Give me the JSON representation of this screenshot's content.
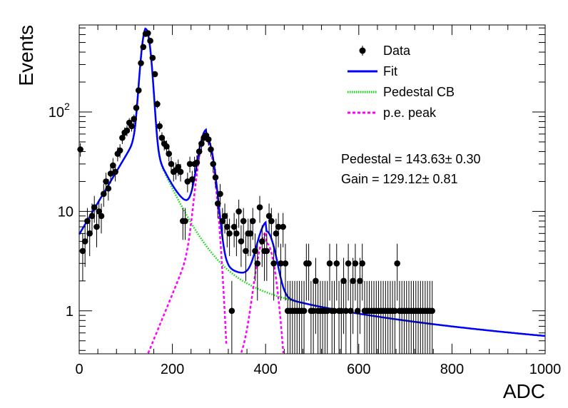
{
  "chart_data": {
    "type": "scatter",
    "xlabel": "ADC",
    "ylabel": "Events",
    "xlim": [
      0,
      1000
    ],
    "ylim": [
      0.37,
      750
    ],
    "yscale": "log",
    "grid": false,
    "legend_position": "top-right",
    "x_ticks": [
      {
        "value": 0,
        "label": "0"
      },
      {
        "value": 200,
        "label": "200"
      },
      {
        "value": 400,
        "label": "400"
      },
      {
        "value": 600,
        "label": "600"
      },
      {
        "value": 800,
        "label": "800"
      },
      {
        "value": 1000,
        "label": "1000"
      }
    ],
    "y_ticks": [
      {
        "value": 1,
        "label": "1"
      },
      {
        "value": 10,
        "label": "10"
      },
      {
        "value": 100,
        "label": "10",
        "sup": "2"
      }
    ],
    "legend": [
      {
        "label": "Data",
        "style": "marker",
        "color": "#000000"
      },
      {
        "label": "Fit",
        "style": "solid",
        "color": "#0000ff"
      },
      {
        "label": "Pedestal CB",
        "style": "dotted",
        "color": "#00dd00"
      },
      {
        "label": "p.e. peak",
        "style": "dashed",
        "color": "#ff00ff"
      }
    ],
    "annotations": [
      {
        "label": "Pedestal = 143.63",
        "pm": "±",
        "value": "0.30"
      },
      {
        "label": "Gain = 129.12",
        "pm": "±",
        "value": "0.81"
      }
    ],
    "series": [
      {
        "name": "Data",
        "style": "markers",
        "color": "#000000",
        "x": [
          2.5,
          7.5,
          12.5,
          17.5,
          22.5,
          27.5,
          32.5,
          37.5,
          42.5,
          47.5,
          52.5,
          57.5,
          62.5,
          67.5,
          72.5,
          77.5,
          82.5,
          87.5,
          92.5,
          97.5,
          102.5,
          107.5,
          112.5,
          117.5,
          122.5,
          127.5,
          132.5,
          137.5,
          142.5,
          147.5,
          152.5,
          157.5,
          162.5,
          167.5,
          172.5,
          177.5,
          182.5,
          187.5,
          192.5,
          197.5,
          202.5,
          207.5,
          212.5,
          217.5,
          222.5,
          227.5,
          232.5,
          237.5,
          242.5,
          247.5,
          252.5,
          257.5,
          262.5,
          267.5,
          272.5,
          277.5,
          282.5,
          287.5,
          292.5,
          297.5,
          302.5,
          307.5,
          312.5,
          317.5,
          322.5,
          327.5,
          332.5,
          337.5,
          342.5,
          347.5,
          352.5,
          357.5,
          362.5,
          367.5,
          372.5,
          377.5,
          382.5,
          387.5,
          392.5,
          397.5,
          402.5,
          407.5,
          412.5,
          417.5,
          422.5,
          427.5,
          432.5,
          437.5,
          442.5,
          447.5,
          452.5,
          457.5,
          462.5,
          467.5,
          472.5,
          477.5,
          482.5,
          487.5,
          492.5,
          497.5,
          502.5,
          507.5,
          512.5,
          517.5,
          522.5,
          527.5,
          532.5,
          537.5,
          542.5,
          547.5,
          552.5,
          557.5,
          562.5,
          567.5,
          572.5,
          577.5,
          582.5,
          587.5,
          592.5,
          597.5,
          602.5,
          607.5,
          612.5,
          617.5,
          622.5,
          627.5,
          632.5,
          637.5,
          642.5,
          647.5,
          652.5,
          657.5,
          662.5,
          667.5,
          672.5,
          677.5,
          682.5,
          687.5,
          692.5,
          697.5,
          702.5,
          707.5,
          712.5,
          717.5,
          722.5,
          727.5,
          732.5,
          737.5,
          742.5,
          747.5,
          752.5,
          757.5
        ],
        "y": [
          42,
          4,
          5,
          8,
          6,
          9,
          11,
          7,
          10,
          9,
          15,
          20,
          17,
          24,
          29,
          25,
          38,
          41,
          55,
          62,
          65,
          78,
          72,
          85,
          110,
          165,
          310,
          450,
          610,
          620,
          520,
          350,
          240,
          120,
          72,
          55,
          48,
          45,
          38,
          30,
          25,
          26,
          28,
          25,
          8,
          8,
          20,
          30,
          21,
          30,
          31,
          40,
          48,
          55,
          58,
          53,
          42,
          30,
          22,
          12,
          15,
          8,
          9,
          7,
          6,
          1,
          7,
          6,
          10,
          5,
          8,
          4,
          6,
          6,
          8,
          4,
          3,
          11,
          5,
          4,
          4,
          9,
          8,
          3,
          6,
          7,
          3,
          7,
          3,
          1,
          1,
          1,
          1,
          1,
          1,
          1,
          1,
          3,
          3,
          1,
          1,
          2,
          1,
          1,
          1,
          1,
          1,
          3,
          1,
          1,
          3,
          1,
          1,
          2,
          1,
          3,
          1,
          2,
          3,
          1,
          2,
          3,
          1,
          1,
          1,
          1,
          1,
          1,
          1,
          1,
          1,
          1,
          1,
          1,
          1,
          1,
          3,
          1,
          1,
          1,
          1,
          1,
          1,
          1,
          1,
          1,
          1,
          1,
          1,
          1,
          1,
          1
        ]
      }
    ]
  }
}
